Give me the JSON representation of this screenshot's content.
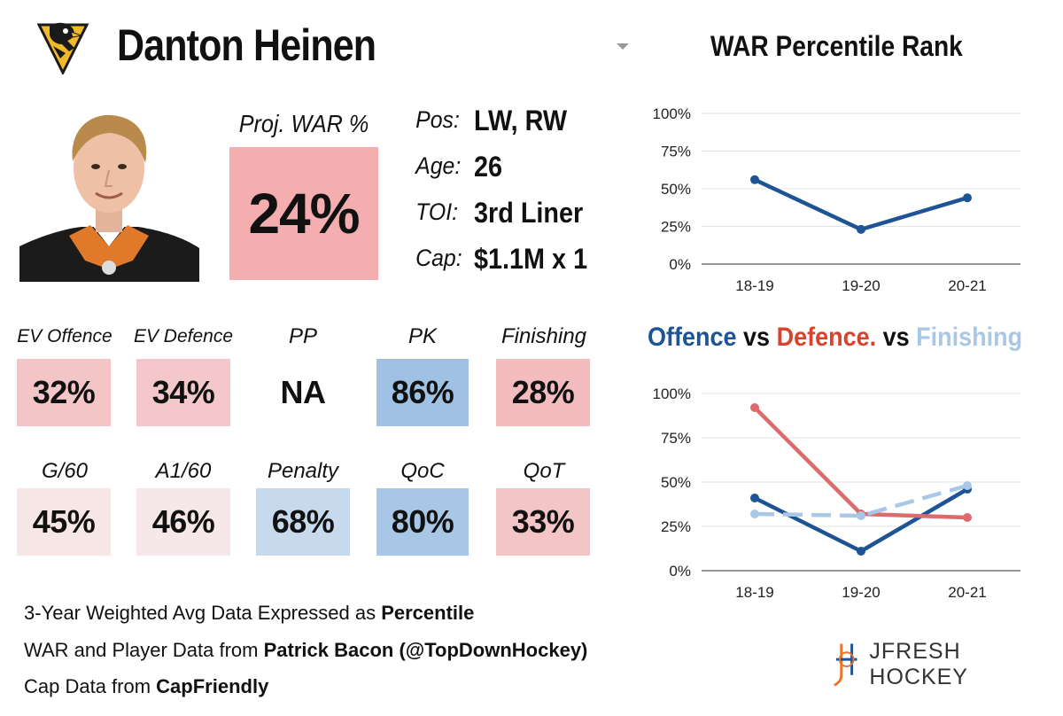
{
  "header": {
    "player_name": "Danton Heinen",
    "logo": "pittsburgh-penguins-logo"
  },
  "proj_war": {
    "label": "Proj. WAR %",
    "value": "24%",
    "color": "#f4aeb0"
  },
  "info": [
    {
      "label": "Pos:",
      "value": "LW, RW"
    },
    {
      "label": "Age:",
      "value": "26"
    },
    {
      "label": "TOI:",
      "value": "3rd Liner"
    },
    {
      "label": "Cap:",
      "value": "$1.1M x 1"
    }
  ],
  "stats_row1": [
    {
      "label": "EV Offence",
      "value": "32%",
      "color": "#f4c5c7"
    },
    {
      "label": "EV Defence",
      "value": "34%",
      "color": "#f4c8ca"
    },
    {
      "label": "PP",
      "value": "NA",
      "color": "#ffffff"
    },
    {
      "label": "PK",
      "value": "86%",
      "color": "#9fc1e3"
    },
    {
      "label": "Finishing",
      "value": "28%",
      "color": "#f4bcbe"
    }
  ],
  "stats_row2": [
    {
      "label": "G/60",
      "value": "45%",
      "color": "#f6e6e6"
    },
    {
      "label": "A1/60",
      "value": "46%",
      "color": "#f6e8e8"
    },
    {
      "label": "Penalty",
      "value": "68%",
      "color": "#c7d9ec"
    },
    {
      "label": "QoC",
      "value": "80%",
      "color": "#a8c6e5"
    },
    {
      "label": "QoT",
      "value": "33%",
      "color": "#f4c5c7"
    }
  ],
  "footer": {
    "line1_prefix": "3-Year Weighted Avg Data Expressed as ",
    "line1_bold": "Percentile",
    "line2_prefix": "WAR and Player Data from ",
    "line2_bold": "Patrick Bacon (@TopDownHockey)",
    "line3_prefix": "Cap Data from ",
    "line3_bold": "CapFriendly",
    "brand": "JFRESH HOCKEY"
  },
  "legend_title": {
    "offence": "Offence",
    "vs1": " vs ",
    "defence": "Defence.",
    "vs2": " vs ",
    "finishing": "Finishing"
  },
  "colors": {
    "offence": "#1d5493",
    "defence": "#dd6b6e",
    "finishing": "#a9c8e6",
    "war": "#1d5493",
    "legend_defence_text": "#d8432d"
  },
  "chart_data": [
    {
      "type": "line",
      "title": "WAR Percentile Rank",
      "categories": [
        "18-19",
        "19-20",
        "20-21"
      ],
      "yticks": [
        "0%",
        "25%",
        "50%",
        "75%",
        "100%"
      ],
      "ylim": [
        0,
        100
      ],
      "grid": true,
      "series": [
        {
          "values": [
            56,
            23,
            44
          ],
          "style": "solid"
        }
      ]
    },
    {
      "type": "line",
      "categories": [
        "18-19",
        "19-20",
        "20-21"
      ],
      "yticks": [
        "0%",
        "25%",
        "50%",
        "75%",
        "100%"
      ],
      "ylim": [
        0,
        100
      ],
      "grid": true,
      "series": [
        {
          "name": "Offence",
          "values": [
            41,
            11,
            46
          ],
          "style": "solid"
        },
        {
          "name": "Defence.",
          "values": [
            92,
            32,
            30
          ],
          "style": "solid"
        },
        {
          "name": "Finishing",
          "values": [
            32,
            31,
            48
          ],
          "style": "dashed"
        }
      ]
    }
  ]
}
